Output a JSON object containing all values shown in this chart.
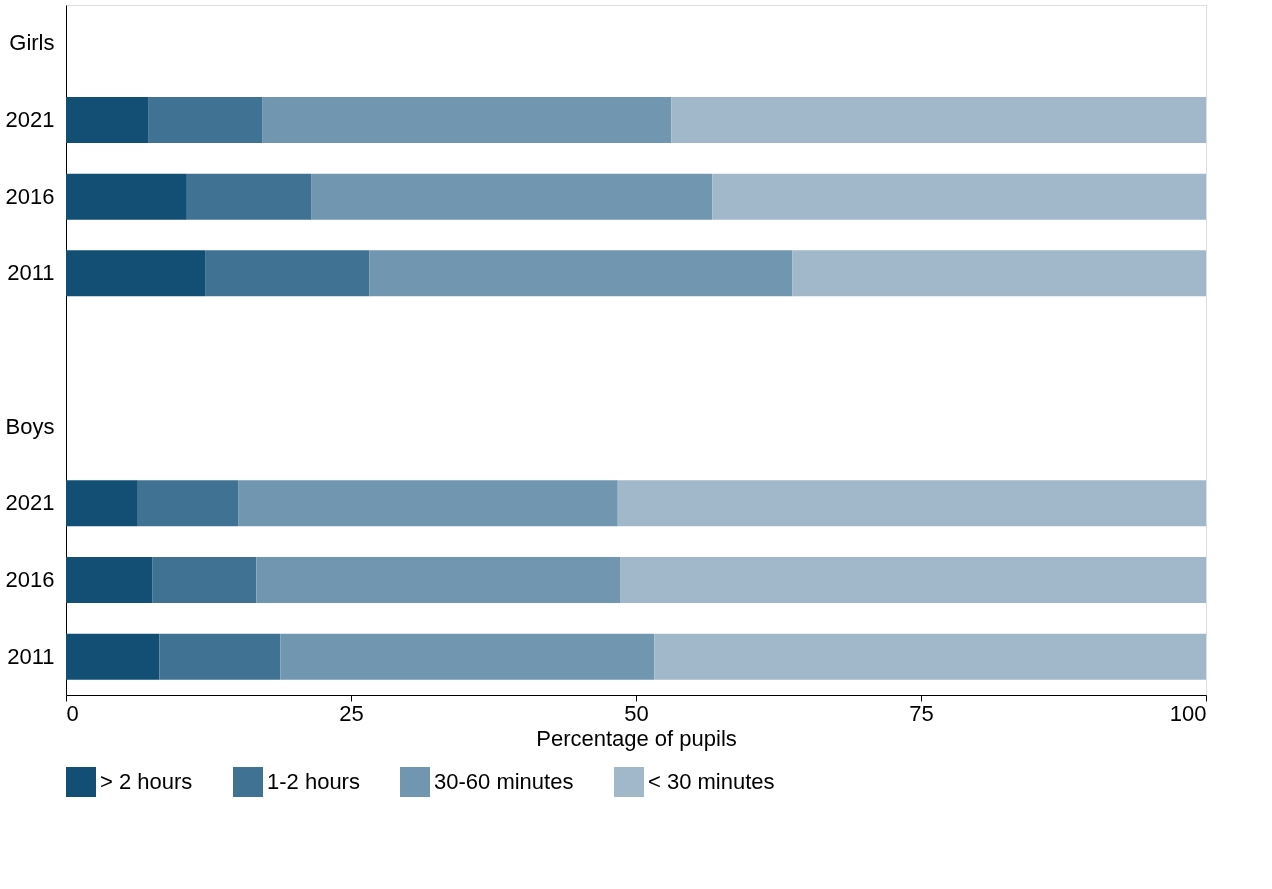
{
  "chart_data": {
    "type": "bar",
    "orientation": "horizontal",
    "stacked": true,
    "xlabel": "Percentage of pupils",
    "categories": [
      "Girls",
      "2021",
      "2016",
      "2011",
      null,
      "Boys",
      "2021",
      "2016",
      "2011"
    ],
    "series": [
      {
        "name": "> 2 hours",
        "color": "#134f75",
        "values": [
          null,
          7.2,
          10.6,
          12.2,
          null,
          null,
          6.3,
          7.6,
          8.2
        ]
      },
      {
        "name": "1-2 hours",
        "color": "#407393",
        "values": [
          null,
          10.0,
          10.9,
          14.4,
          null,
          null,
          8.8,
          9.1,
          10.6
        ]
      },
      {
        "name": "30-60 minutes",
        "color": "#7096b0",
        "values": [
          null,
          35.9,
          35.2,
          37.1,
          null,
          null,
          33.3,
          31.9,
          32.8
        ]
      },
      {
        "name": "< 30 minutes",
        "color": "#a0b8c9",
        "values": [
          null,
          46.9,
          43.3,
          36.3,
          null,
          null,
          51.6,
          51.4,
          48.4
        ]
      }
    ],
    "xlim": [
      0,
      100
    ],
    "xticks": [
      0,
      25,
      50,
      75,
      100
    ],
    "grid": false,
    "legend": "bottom"
  }
}
